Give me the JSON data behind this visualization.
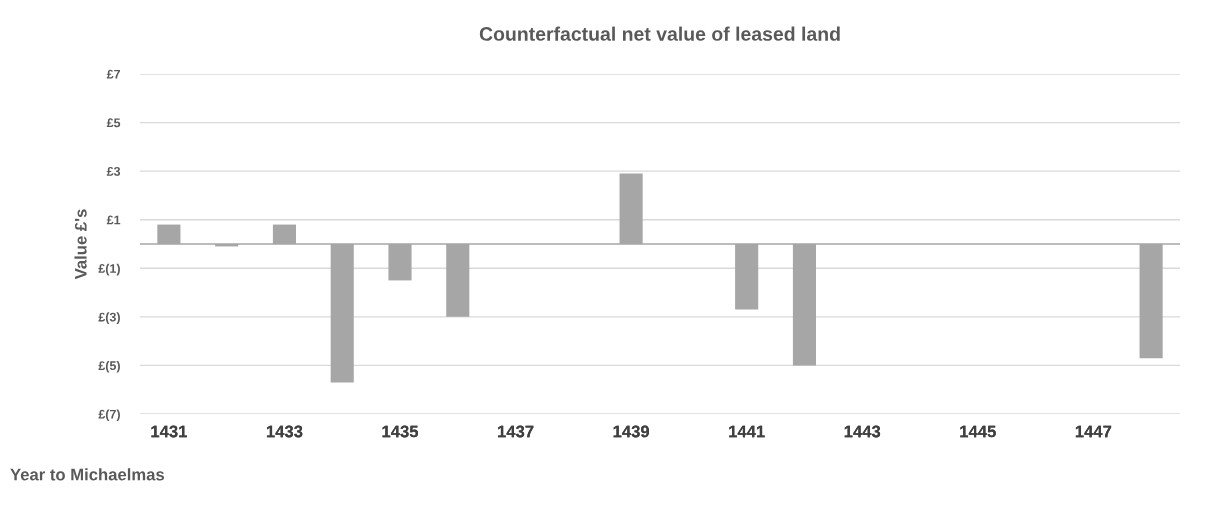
{
  "chart_data": {
    "type": "bar",
    "title": "Counterfactual net value of leased land",
    "ylabel": "Value £'s",
    "xlabel": "Year to Michaelmas",
    "categories": [
      "1431",
      null,
      "1433",
      null,
      "1435",
      null,
      "1437",
      null,
      "1439",
      null,
      "1441",
      null,
      "1443",
      null,
      "1445",
      null,
      "1447",
      null
    ],
    "values": [
      0.8,
      -0.1,
      0.8,
      -5.7,
      -1.5,
      -3.0,
      0,
      0,
      2.9,
      0,
      -2.7,
      -5.0,
      0,
      0,
      0,
      0,
      0,
      -4.7
    ],
    "color": "#a6a6a6",
    "ylim": [
      -7,
      7
    ],
    "yticks": [
      {
        "value": -7,
        "label": "£(7)"
      },
      {
        "value": -5,
        "label": "£(5)"
      },
      {
        "value": -3,
        "label": "£(3)"
      },
      {
        "value": -1,
        "label": "£(1)"
      },
      {
        "value": 1,
        "label": "£1"
      },
      {
        "value": 3,
        "label": "£3"
      },
      {
        "value": 5,
        "label": "£5"
      },
      {
        "value": 7,
        "label": "£7"
      }
    ],
    "grid": "y",
    "legend": false
  }
}
